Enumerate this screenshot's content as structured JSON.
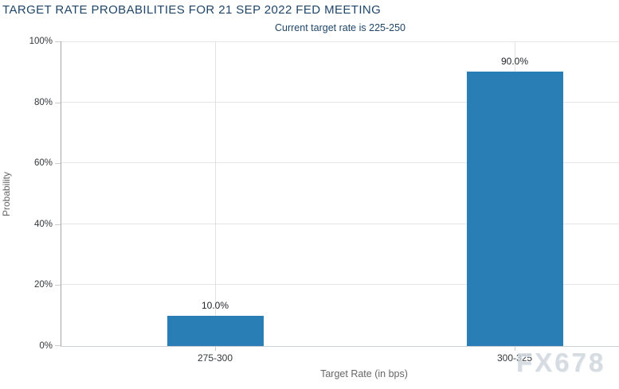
{
  "chart_data": {
    "type": "bar",
    "title": "TARGET RATE PROBABILITIES FOR 21 SEP 2022 FED MEETING",
    "subtitle": "Current target rate is 225-250",
    "categories": [
      "275-300",
      "300-325"
    ],
    "values": [
      10.0,
      90.0
    ],
    "value_labels": [
      "10.0%",
      "90.0%"
    ],
    "xlabel": "Target Rate (in bps)",
    "ylabel": "Probability",
    "ylim": [
      0,
      100
    ],
    "ytick_step": 20,
    "ytick_labels": [
      "0%",
      "20%",
      "40%",
      "60%",
      "80%",
      "100%"
    ],
    "grid": true,
    "legend": "none",
    "bar_color": "#2a7eb6",
    "title_color": "#1f4568",
    "watermark": "FX678"
  }
}
